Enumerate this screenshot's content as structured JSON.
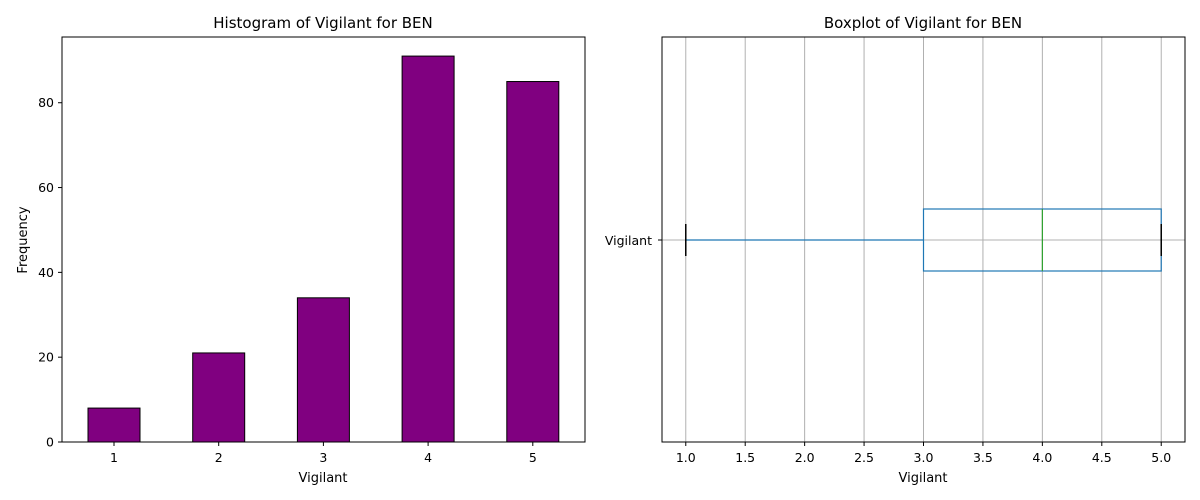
{
  "chart_data": [
    {
      "type": "bar",
      "title": "Histogram of Vigilant for BEN",
      "xlabel": "Vigilant",
      "ylabel": "Frequency",
      "categories": [
        "1",
        "2",
        "3",
        "4",
        "5"
      ],
      "values": [
        8,
        21,
        34,
        91,
        85
      ],
      "yticks": [
        0,
        20,
        40,
        60,
        80
      ],
      "ylim": [
        0,
        95.5
      ],
      "bar_color": "#800080",
      "edge_color": "#000000",
      "grid": false
    },
    {
      "type": "boxplot",
      "title": "Boxplot of Vigilant for BEN",
      "xlabel": "Vigilant",
      "series_label": "Vigilant",
      "whisker_low": 1.0,
      "q1": 3.0,
      "median": 4.0,
      "q3": 5.0,
      "whisker_high": 5.0,
      "xticks": [
        "1.0",
        "1.5",
        "2.0",
        "2.5",
        "3.0",
        "3.5",
        "4.0",
        "4.5",
        "5.0"
      ],
      "xlim": [
        0.8,
        5.2
      ],
      "box_color": "#1f77b4",
      "median_color": "#2ca02c",
      "cap_color": "#000000",
      "grid": true
    }
  ]
}
